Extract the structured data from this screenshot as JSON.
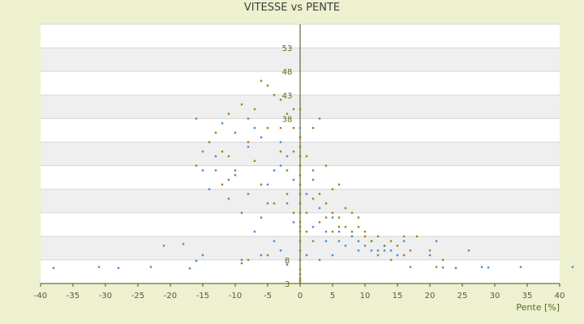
{
  "chart_data": {
    "type": "scatter",
    "title": "VITESSE vs PENTE",
    "xlabel": "Pente [%]",
    "ylabel": "",
    "xlim": [
      -40,
      40
    ],
    "ylim": [
      3,
      58
    ],
    "x_ticks": [
      -40,
      -35,
      -30,
      -25,
      -20,
      -15,
      -10,
      -5,
      0,
      5,
      10,
      15,
      20,
      25,
      30,
      35,
      40
    ],
    "y_ticks": [
      3,
      8,
      13,
      18,
      23,
      28,
      33,
      38,
      43,
      48,
      53
    ],
    "y_tick_labels_shown": [
      "3",
      "8",
      "",
      "",
      "",
      "",
      "",
      "38",
      "43",
      "48",
      "53"
    ],
    "grid": "horizontal alternating bands",
    "colors": {
      "background": "#eef1cf",
      "plot_band_white": "#ffffff",
      "plot_band_gray": "#efefef",
      "series_blue": "#3f8fd8",
      "series_olive": "#8e8a1a",
      "axis": "#4a4a1a"
    },
    "series": [
      {
        "color": "#3f8fd8",
        "points": [
          [
            -38,
            6.3
          ],
          [
            -31,
            6.5
          ],
          [
            -28,
            6.3
          ],
          [
            -23,
            6.5
          ],
          [
            -21,
            11
          ],
          [
            -18,
            11.4
          ],
          [
            -17,
            6.2
          ],
          [
            -16,
            7.8
          ],
          [
            -15,
            9
          ],
          [
            -16,
            38
          ],
          [
            -14,
            23
          ],
          [
            -13,
            30
          ],
          [
            -12,
            37
          ],
          [
            -11,
            21
          ],
          [
            -10,
            26
          ],
          [
            -9,
            18
          ],
          [
            -8,
            32
          ],
          [
            -7,
            14
          ],
          [
            -6,
            34
          ],
          [
            -5,
            24
          ],
          [
            -4,
            12
          ],
          [
            -3,
            28
          ],
          [
            -2,
            20
          ],
          [
            -1,
            16
          ],
          [
            0,
            30
          ],
          [
            1,
            22
          ],
          [
            2,
            15
          ],
          [
            3,
            19
          ],
          [
            4,
            12
          ],
          [
            5,
            17
          ],
          [
            6,
            14
          ],
          [
            7,
            11
          ],
          [
            8,
            13
          ],
          [
            9,
            12
          ],
          [
            10,
            11
          ],
          [
            11,
            12
          ],
          [
            12,
            10
          ],
          [
            13,
            11
          ],
          [
            14,
            10
          ],
          [
            15,
            9
          ],
          [
            16,
            12
          ],
          [
            17,
            6.5
          ],
          [
            20,
            9
          ],
          [
            21,
            12
          ],
          [
            22,
            6.4
          ],
          [
            24,
            6.3
          ],
          [
            26,
            10
          ],
          [
            28,
            6.5
          ],
          [
            29,
            6.4
          ],
          [
            34,
            6.5
          ],
          [
            42,
            6.5
          ],
          [
            -9,
            8
          ],
          [
            -6,
            9
          ],
          [
            -3,
            10
          ],
          [
            -2,
            7
          ],
          [
            1,
            9
          ],
          [
            3,
            8
          ],
          [
            5,
            9
          ],
          [
            -5,
            20
          ],
          [
            -4,
            27
          ],
          [
            -1,
            25
          ],
          [
            2,
            27
          ],
          [
            -8,
            22
          ],
          [
            -11,
            25
          ],
          [
            -13,
            27
          ],
          [
            -15,
            27
          ],
          [
            -7,
            36
          ],
          [
            -3,
            33
          ],
          [
            0,
            36
          ],
          [
            4,
            14
          ],
          [
            6,
            12
          ],
          [
            9,
            10
          ],
          [
            11,
            10
          ],
          [
            13,
            10
          ],
          [
            -2,
            30
          ],
          [
            -6,
            17
          ]
        ]
      },
      {
        "color": "#8e8a1a",
        "points": [
          [
            -16,
            28
          ],
          [
            -15,
            31
          ],
          [
            -14,
            33
          ],
          [
            -13,
            35
          ],
          [
            -12,
            31
          ],
          [
            -11,
            39
          ],
          [
            -10,
            35
          ],
          [
            -9,
            41
          ],
          [
            -8,
            38
          ],
          [
            -7,
            40
          ],
          [
            -6,
            46
          ],
          [
            -5,
            45
          ],
          [
            -4,
            43
          ],
          [
            -3,
            42
          ],
          [
            -2,
            39
          ],
          [
            -1,
            36
          ],
          [
            0,
            34
          ],
          [
            1,
            30
          ],
          [
            2,
            25
          ],
          [
            3,
            22
          ],
          [
            4,
            20
          ],
          [
            5,
            18
          ],
          [
            6,
            17
          ],
          [
            7,
            15
          ],
          [
            8,
            14
          ],
          [
            9,
            15
          ],
          [
            10,
            13
          ],
          [
            11,
            12
          ],
          [
            12,
            13
          ],
          [
            13,
            11
          ],
          [
            14,
            12
          ],
          [
            15,
            11
          ],
          [
            16,
            13
          ],
          [
            17,
            10
          ],
          [
            -9,
            7.3
          ],
          [
            -8,
            8
          ],
          [
            -5,
            9
          ],
          [
            -4,
            20
          ],
          [
            -2,
            27
          ],
          [
            -1,
            31
          ],
          [
            0,
            26
          ],
          [
            1,
            18
          ],
          [
            2,
            21
          ],
          [
            3,
            16
          ],
          [
            4,
            17
          ],
          [
            5,
            14
          ],
          [
            6,
            15
          ],
          [
            -7,
            29
          ],
          [
            -6,
            24
          ],
          [
            -3,
            36
          ],
          [
            -2,
            22
          ],
          [
            -1,
            18
          ],
          [
            0,
            15
          ],
          [
            2,
            12
          ],
          [
            3,
            38
          ],
          [
            2,
            36
          ],
          [
            -10,
            27
          ],
          [
            -12,
            24
          ],
          [
            -11,
            30
          ],
          [
            -8,
            33
          ],
          [
            -5,
            36
          ],
          [
            -3,
            31
          ],
          [
            -1,
            40
          ],
          [
            0,
            40
          ],
          [
            1,
            14
          ],
          [
            4,
            28
          ],
          [
            5,
            23
          ],
          [
            6,
            24
          ],
          [
            7,
            19
          ],
          [
            8,
            18
          ],
          [
            9,
            17
          ],
          [
            10,
            14
          ],
          [
            12,
            9
          ],
          [
            14,
            8
          ],
          [
            16,
            9
          ],
          [
            21,
            6.5
          ],
          [
            18,
            13
          ],
          [
            20,
            10
          ],
          [
            22,
            8
          ],
          [
            0,
            5
          ],
          [
            0,
            4
          ],
          [
            0,
            3.5
          ],
          [
            0,
            6
          ],
          [
            0,
            8
          ],
          [
            0,
            10
          ],
          [
            0,
            12
          ],
          [
            0,
            14
          ],
          [
            0,
            16
          ],
          [
            0,
            18
          ],
          [
            0,
            20
          ],
          [
            0,
            22
          ],
          [
            0,
            24
          ],
          [
            0,
            28
          ],
          [
            0,
            30
          ],
          [
            0,
            32
          ],
          [
            0,
            34
          ]
        ]
      }
    ]
  }
}
